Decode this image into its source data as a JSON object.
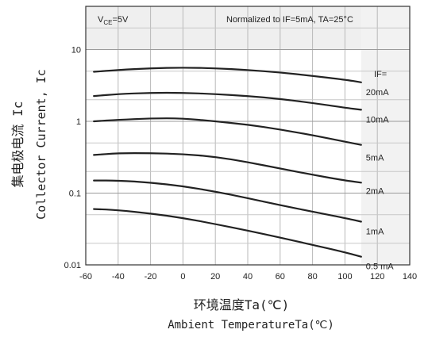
{
  "chart_data": {
    "type": "line",
    "x_scale": "linear",
    "y_scale": "log",
    "xlim": [
      -60,
      140
    ],
    "ylim": [
      0.01,
      40
    ],
    "x_ticks": [
      "-60",
      "-40",
      "-20",
      "0",
      "20",
      "40",
      "60",
      "80",
      "100",
      "120",
      "140"
    ],
    "x_tick_values": [
      -60,
      -40,
      -20,
      0,
      20,
      40,
      60,
      80,
      100,
      120,
      140
    ],
    "y_ticks": [
      "0.01",
      "0.1",
      "1",
      "10"
    ],
    "y_tick_values": [
      0.01,
      0.1,
      1,
      10
    ],
    "grid": true,
    "xlabel_cn": "环境温度Ta(℃)",
    "xlabel_en": "Ambient TemperatureTa(℃)",
    "ylabel_cn": "集电极电流 Ic",
    "ylabel_en": "Collector Current, Ic",
    "annotations": {
      "vce": "VCE=5V",
      "normalized": "Normalized to IF=5mA, TA=25°C",
      "if_header": "IF="
    },
    "series": [
      {
        "name": "20mA",
        "x": [
          -55,
          -40,
          -20,
          0,
          20,
          40,
          60,
          80,
          100,
          110
        ],
        "y": [
          4.9,
          5.2,
          5.5,
          5.6,
          5.5,
          5.2,
          4.8,
          4.3,
          3.8,
          3.5
        ]
      },
      {
        "name": "10mA",
        "x": [
          -55,
          -40,
          -20,
          0,
          20,
          40,
          60,
          80,
          100,
          110
        ],
        "y": [
          2.25,
          2.4,
          2.5,
          2.5,
          2.4,
          2.25,
          2.05,
          1.8,
          1.55,
          1.45
        ]
      },
      {
        "name": "5mA",
        "x": [
          -55,
          -40,
          -20,
          0,
          20,
          40,
          60,
          80,
          100,
          110
        ],
        "y": [
          1.0,
          1.05,
          1.1,
          1.1,
          1.0,
          0.9,
          0.77,
          0.64,
          0.52,
          0.47
        ]
      },
      {
        "name": "2mA",
        "x": [
          -55,
          -40,
          -20,
          0,
          20,
          40,
          60,
          80,
          100,
          110
        ],
        "y": [
          0.34,
          0.36,
          0.36,
          0.35,
          0.32,
          0.27,
          0.22,
          0.18,
          0.15,
          0.14
        ]
      },
      {
        "name": "1mA",
        "x": [
          -55,
          -40,
          -20,
          0,
          20,
          40,
          60,
          80,
          100,
          110
        ],
        "y": [
          0.15,
          0.15,
          0.14,
          0.125,
          0.105,
          0.085,
          0.068,
          0.055,
          0.045,
          0.04
        ]
      },
      {
        "name": "0.5 mA",
        "x": [
          -55,
          -40,
          -20,
          0,
          20,
          40,
          60,
          80,
          100,
          110
        ],
        "y": [
          0.06,
          0.058,
          0.052,
          0.045,
          0.037,
          0.03,
          0.024,
          0.019,
          0.015,
          0.013
        ]
      }
    ]
  }
}
